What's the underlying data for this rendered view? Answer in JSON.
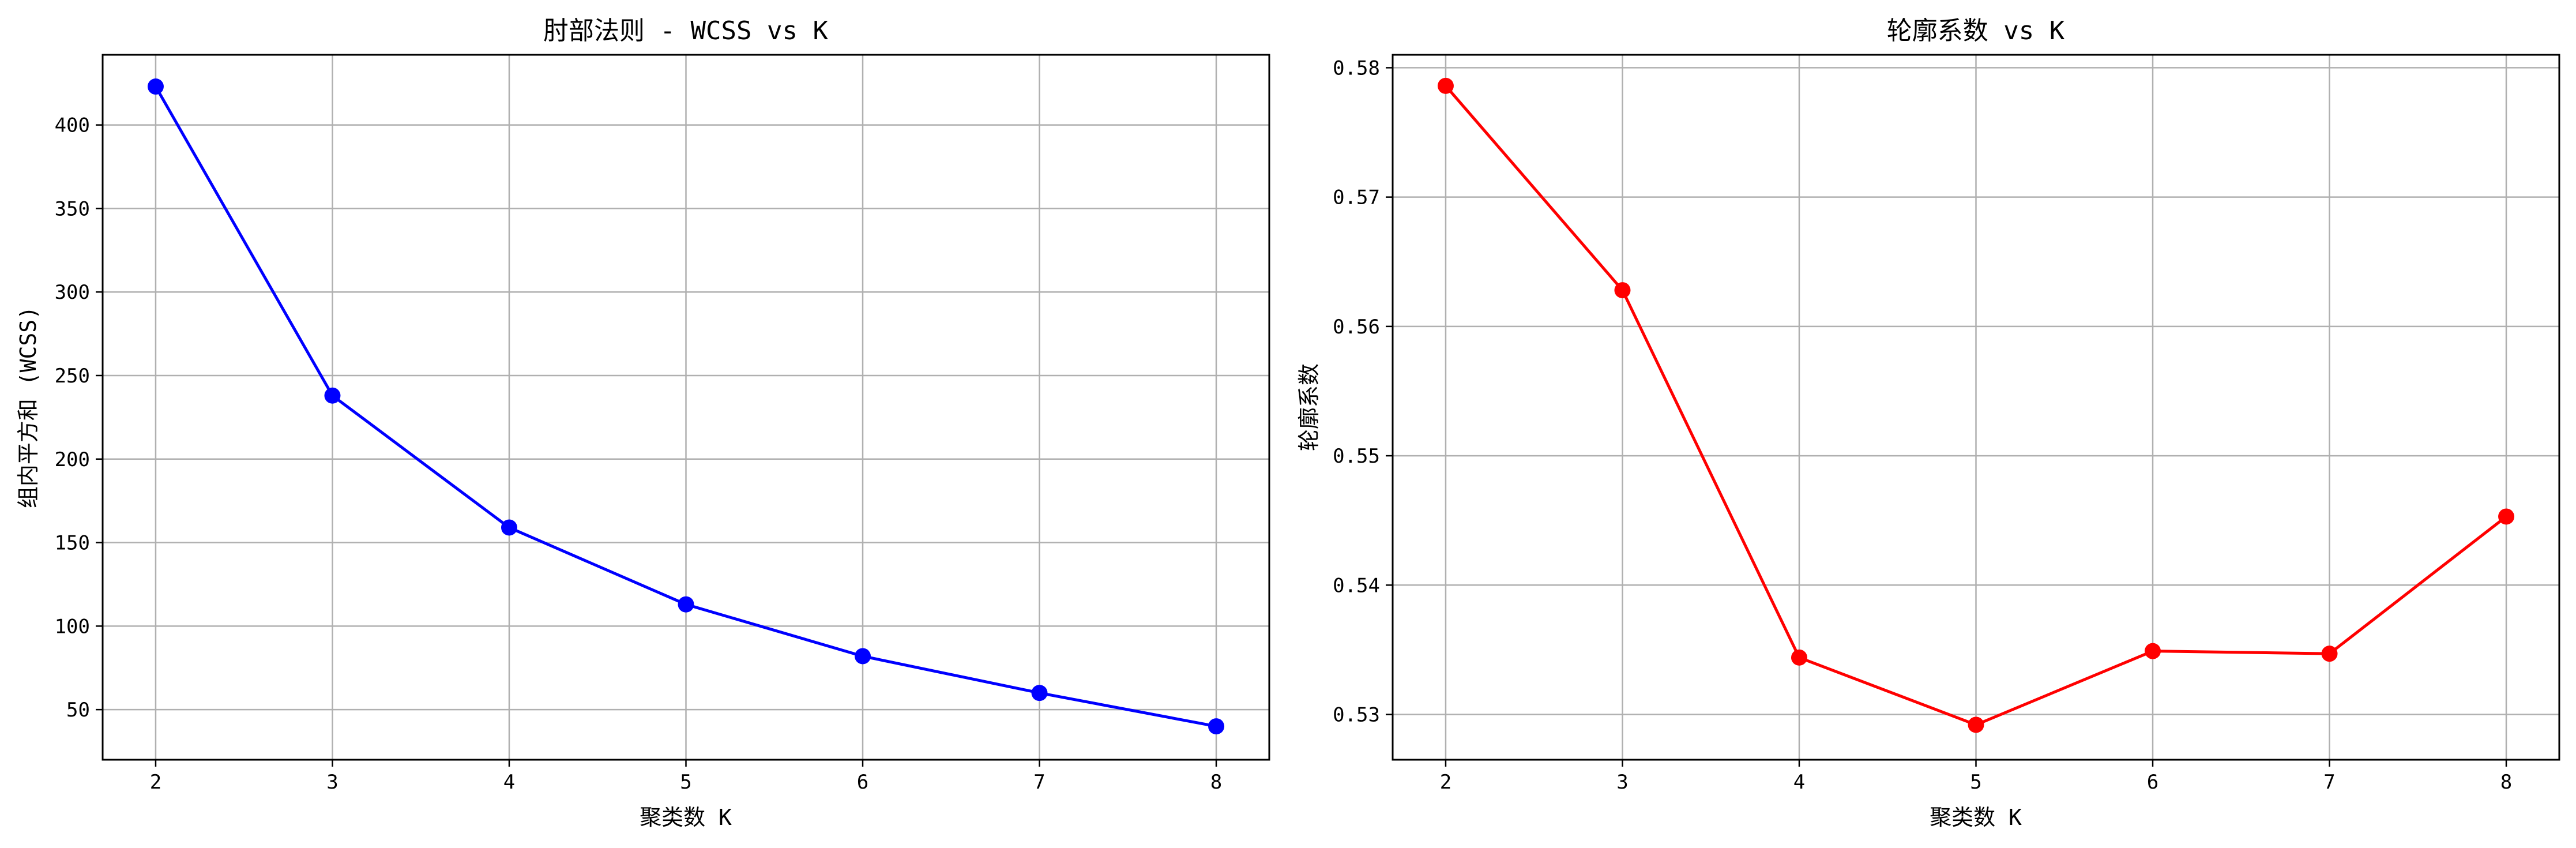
{
  "chart_data": [
    {
      "type": "line",
      "title": "肘部法则 - WCSS vs K",
      "xlabel": "聚类数 K",
      "ylabel": "组内平方和 (WCSS)",
      "x": [
        2,
        3,
        4,
        5,
        6,
        7,
        8
      ],
      "series": [
        {
          "values": [
            423,
            238,
            159,
            113,
            82,
            60,
            40
          ],
          "color": "#0000ff"
        }
      ],
      "xlim": [
        1.7,
        8.3
      ],
      "ylim": [
        20,
        442
      ],
      "xticks": [
        "2",
        "3",
        "4",
        "5",
        "6",
        "7",
        "8"
      ],
      "yticks": [
        "50",
        "100",
        "150",
        "200",
        "250",
        "300",
        "350",
        "400"
      ],
      "ytick_values": [
        50,
        100,
        150,
        200,
        250,
        300,
        350,
        400
      ],
      "grid": true,
      "marker": "circle"
    },
    {
      "type": "line",
      "title": "轮廓系数 vs K",
      "xlabel": "聚类数 K",
      "ylabel": "轮廓系数",
      "x": [
        2,
        3,
        4,
        5,
        6,
        7,
        8
      ],
      "series": [
        {
          "values": [
            0.5786,
            0.5628,
            0.5344,
            0.5292,
            0.5349,
            0.5347,
            0.5453
          ],
          "color": "#ff0000"
        }
      ],
      "xlim": [
        1.7,
        8.3
      ],
      "ylim": [
        0.5265,
        0.581
      ],
      "xticks": [
        "2",
        "3",
        "4",
        "5",
        "6",
        "7",
        "8"
      ],
      "yticks": [
        "0.53",
        "0.54",
        "0.55",
        "0.56",
        "0.57",
        "0.58"
      ],
      "ytick_values": [
        0.53,
        0.54,
        0.55,
        0.56,
        0.57,
        0.58
      ],
      "grid": true,
      "marker": "circle"
    }
  ]
}
